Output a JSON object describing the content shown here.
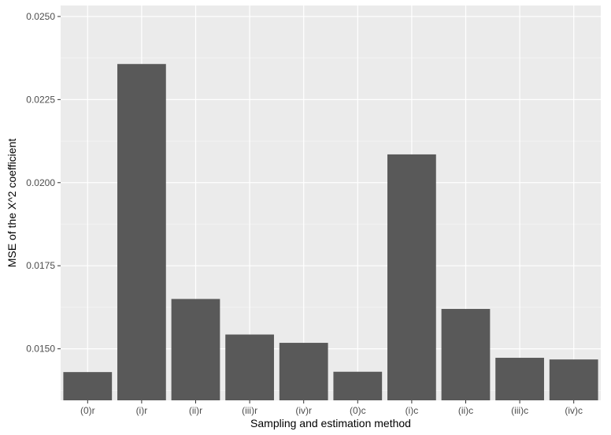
{
  "chart_data": {
    "type": "bar",
    "title": "",
    "xlabel": "Sampling and estimation method",
    "ylabel": "MSE of the X^2 coefficient",
    "categories": [
      "(0)r",
      "(i)r",
      "(ii)r",
      "(iii)r",
      "(iv)r",
      "(0)c",
      "(i)c",
      "(ii)c",
      "(iii)c",
      "(iv)c"
    ],
    "values": [
      0.0143,
      0.02357,
      0.0165,
      0.01543,
      0.01518,
      0.01431,
      0.02085,
      0.0162,
      0.01473,
      0.01468
    ],
    "ylim": [
      0.01345,
      0.02533
    ],
    "yticks": [
      0.015,
      0.0175,
      0.02,
      0.0225,
      0.025
    ],
    "ytick_labels": [
      "0.0150",
      "0.0175",
      "0.0200",
      "0.0225",
      "0.0250"
    ],
    "grid": true,
    "colors": {
      "panel": "#ebebeb",
      "bar": "#595959",
      "grid_major": "#ffffff",
      "grid_minor": "#f5f5f5"
    }
  }
}
